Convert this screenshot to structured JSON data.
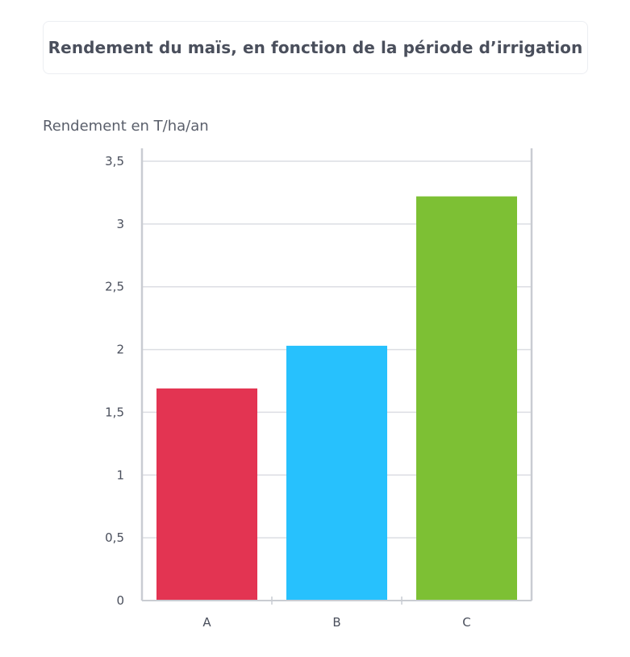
{
  "chart_data": {
    "type": "bar",
    "title": "Rendement du maïs, en fonction de la période d’irrigation",
    "ylabel": "Rendement en T/ha/an",
    "xlabel": "",
    "categories": [
      "A",
      "B",
      "C"
    ],
    "values": [
      1.69,
      2.03,
      3.22
    ],
    "colors": [
      "#e33452",
      "#27c1fd",
      "#7dc034"
    ],
    "ylim": [
      0,
      3.5
    ],
    "yticks": [
      0,
      0.5,
      1,
      1.5,
      2,
      2.5,
      3,
      3.5
    ],
    "ytick_labels": [
      "0",
      "0,5",
      "1",
      "1,5",
      "2",
      "2,5",
      "3",
      "3,5"
    ],
    "grid": true,
    "legend": "none"
  }
}
